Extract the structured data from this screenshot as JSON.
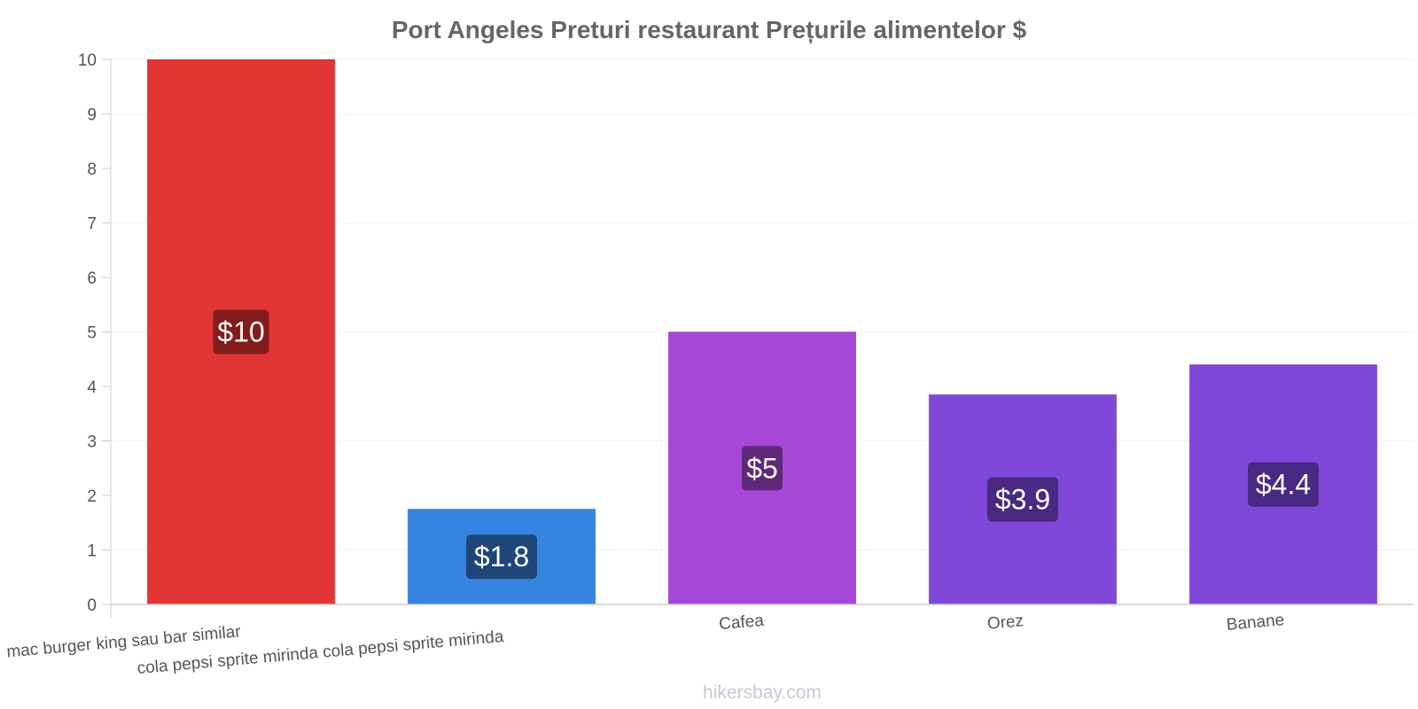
{
  "chart_data": {
    "type": "bar",
    "title": "Port Angeles Preturi restaurant Prețurile alimentelor $",
    "categories": [
      "mac burger king sau bar similar",
      "cola pepsi sprite mirinda cola pepsi sprite mirinda",
      "Cafea",
      "Orez",
      "Banane"
    ],
    "values": [
      10,
      1.75,
      5,
      3.85,
      4.4
    ],
    "value_labels": [
      "$10",
      "$1.8",
      "$5",
      "$3.9",
      "$4.4"
    ],
    "bar_colors": [
      "#e23535",
      "#3584e0",
      "#a647d8",
      "#8048d8",
      "#8048d8"
    ],
    "label_box_colors": [
      "#7a1a1a",
      "#1c3f6e",
      "#582670",
      "#43267a",
      "#43267a"
    ],
    "ylim": [
      0,
      10
    ],
    "yticks": [
      "0",
      "1",
      "2",
      "3",
      "4",
      "5",
      "6",
      "7",
      "8",
      "9",
      "10"
    ],
    "grid": true,
    "xlabel": "",
    "ylabel": ""
  },
  "watermark": "hikersbay.com"
}
